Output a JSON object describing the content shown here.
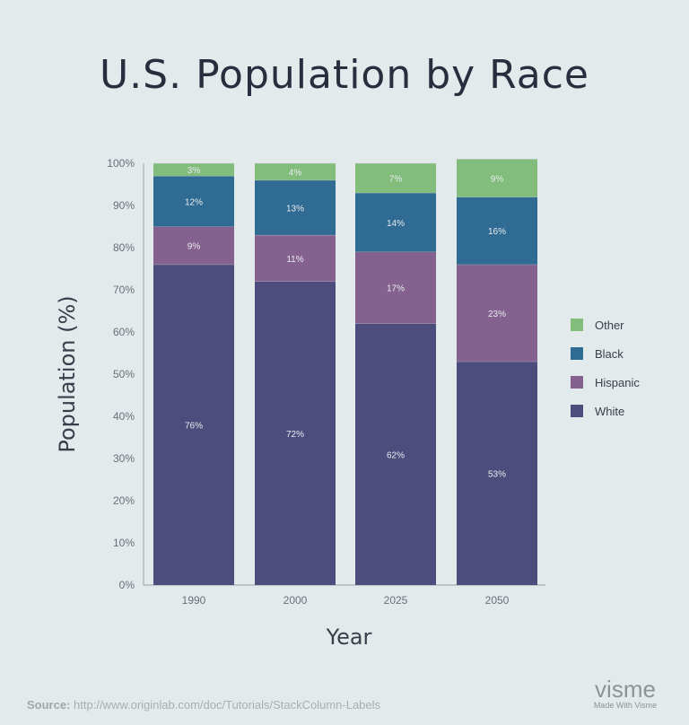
{
  "chart_data": {
    "type": "bar",
    "stacked": true,
    "title": "U.S. Population by Race",
    "xlabel": "Year",
    "ylabel": "Population (%)",
    "ylim": [
      0,
      100
    ],
    "yticks": [
      "0%",
      "10%",
      "20%",
      "30%",
      "40%",
      "50%",
      "60%",
      "70%",
      "80%",
      "90%",
      "100%"
    ],
    "categories": [
      "1990",
      "2000",
      "2025",
      "2050"
    ],
    "series": [
      {
        "name": "White",
        "color": "#4c4d7c",
        "values": [
          76,
          72,
          62,
          53
        ]
      },
      {
        "name": "Hispanic",
        "color": "#84618f",
        "values": [
          9,
          11,
          17,
          23
        ]
      },
      {
        "name": "Black",
        "color": "#2f6b92",
        "values": [
          12,
          13,
          14,
          16
        ]
      },
      {
        "name": "Other",
        "color": "#82bd7c",
        "values": [
          3,
          4,
          7,
          9
        ]
      }
    ],
    "legend": [
      "Other",
      "Black",
      "Hispanic",
      "White"
    ],
    "legend_placement": "right",
    "grid": false
  },
  "footer": {
    "source_label": "Source:",
    "source_url": "http://www.originlab.com/doc/Tutorials/StackColumn-Labels",
    "logo_text": "visme",
    "logo_tagline": "Made With Visme"
  }
}
